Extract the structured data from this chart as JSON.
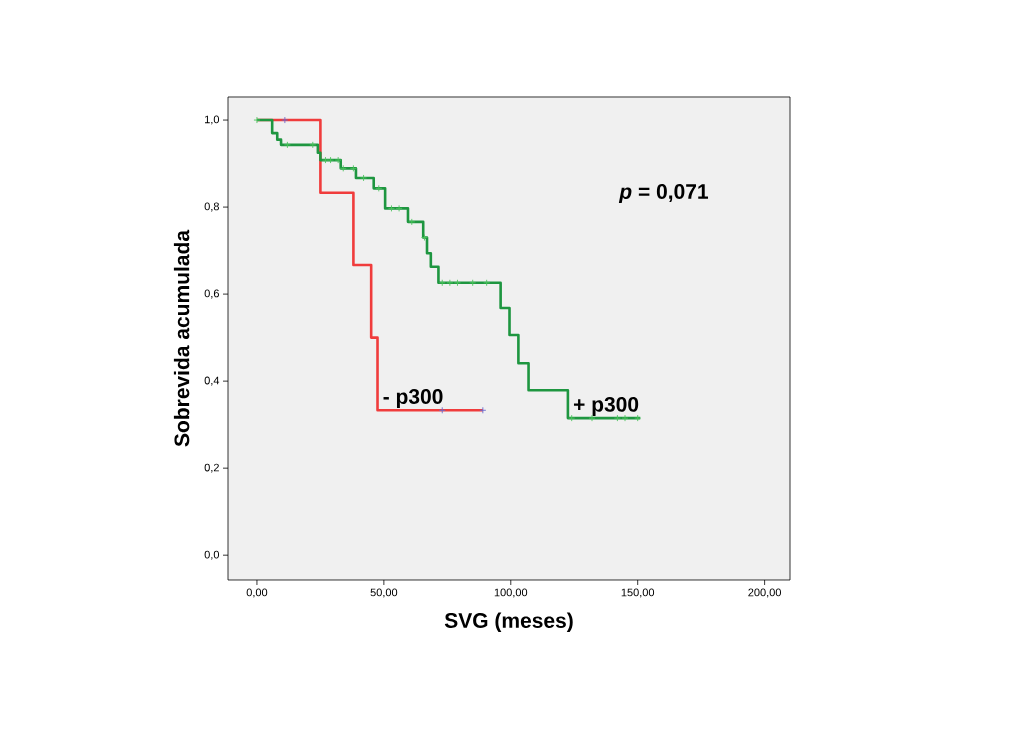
{
  "chart_data": {
    "type": "step",
    "xlabel": "SVG (meses)",
    "ylabel": "Sobrevida acumulada",
    "annotations": [
      "*p* = 0,071"
    ],
    "xlim": [
      -11.4,
      210
    ],
    "ylim": [
      -0.057,
      1.053
    ],
    "xticks": [
      {
        "value": 0,
        "label": "0,00"
      },
      {
        "value": 50,
        "label": "50,00"
      },
      {
        "value": 100,
        "label": "100,00"
      },
      {
        "value": 150,
        "label": "150,00"
      },
      {
        "value": 200,
        "label": "200,00"
      }
    ],
    "yticks": [
      {
        "value": 0,
        "label": "0,0"
      },
      {
        "value": 0.2,
        "label": "0,2"
      },
      {
        "value": 0.4,
        "label": "0,4"
      },
      {
        "value": 0.6,
        "label": "0,6"
      },
      {
        "value": 0.8,
        "label": "0,8"
      },
      {
        "value": 1.0,
        "label": "1,0"
      }
    ],
    "grid": false,
    "legend": false,
    "series": [
      {
        "name": "- p300",
        "color": "#f03c3c",
        "x": [
          0,
          25,
          38,
          45,
          47.5,
          89
        ],
        "values": [
          1,
          0.833,
          0.667,
          0.5,
          0.333,
          0.333
        ]
      },
      {
        "name": "+ p300",
        "color": "#1e9640",
        "x": [
          0,
          6,
          8,
          9.5,
          24,
          25,
          33,
          39,
          46,
          50.5,
          59.5,
          65.5,
          67,
          68.5,
          71.5,
          96,
          99.5,
          103,
          107,
          122.5,
          151
        ],
        "values": [
          1,
          0.97,
          0.955,
          0.943,
          0.925,
          0.908,
          0.889,
          0.867,
          0.843,
          0.797,
          0.766,
          0.73,
          0.694,
          0.663,
          0.626,
          0.568,
          0.506,
          0.441,
          0.379,
          0.315,
          0.315
        ]
      },
      {
        "type": "scatter",
        "marker": "cross",
        "color": "#6a6ad0",
        "x": [
          11,
          73,
          89
        ],
        "values": [
          1,
          0.333,
          0.333
        ]
      },
      {
        "type": "scatter",
        "marker": "cross",
        "color": "#4cc45c",
        "x": [
          0,
          12,
          22,
          27,
          29,
          32,
          34,
          38,
          42,
          48,
          53,
          56,
          61,
          66,
          73,
          76,
          79,
          85,
          90.5,
          124,
          132,
          142,
          145,
          150
        ],
        "values": [
          1,
          0.943,
          0.943,
          0.908,
          0.908,
          0.908,
          0.889,
          0.889,
          0.867,
          0.843,
          0.797,
          0.797,
          0.766,
          0.73,
          0.626,
          0.626,
          0.626,
          0.626,
          0.626,
          0.315,
          0.315,
          0.315,
          0.315,
          0.315
        ]
      }
    ]
  }
}
